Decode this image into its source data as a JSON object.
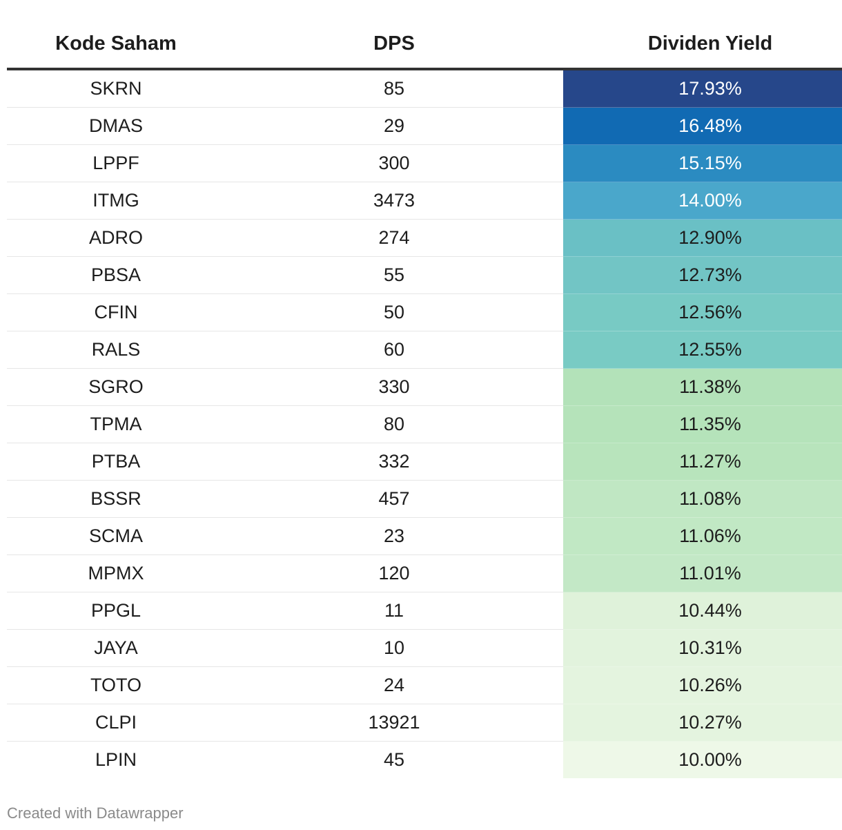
{
  "chart_data": {
    "type": "table",
    "columns": [
      "Kode Saham",
      "DPS",
      "Dividen Yield"
    ],
    "rows": [
      {
        "kode": "SKRN",
        "dps": "85",
        "yield": "17.93%",
        "bg": "#26478a",
        "fg": "#ffffff"
      },
      {
        "kode": "DMAS",
        "dps": "29",
        "yield": "16.48%",
        "bg": "#116ab3",
        "fg": "#ffffff"
      },
      {
        "kode": "LPPF",
        "dps": "300",
        "yield": "15.15%",
        "bg": "#2b8bc1",
        "fg": "#ffffff"
      },
      {
        "kode": "ITMG",
        "dps": "3473",
        "yield": "14.00%",
        "bg": "#4aa7cb",
        "fg": "#ffffff"
      },
      {
        "kode": "ADRO",
        "dps": "274",
        "yield": "12.90%",
        "bg": "#6ac0c5",
        "fg": "#1d1d1d"
      },
      {
        "kode": "PBSA",
        "dps": "55",
        "yield": "12.73%",
        "bg": "#72c5c5",
        "fg": "#1d1d1d"
      },
      {
        "kode": "CFIN",
        "dps": "50",
        "yield": "12.56%",
        "bg": "#78cac4",
        "fg": "#1d1d1d"
      },
      {
        "kode": "RALS",
        "dps": "60",
        "yield": "12.55%",
        "bg": "#79cbc4",
        "fg": "#1d1d1d"
      },
      {
        "kode": "SGRO",
        "dps": "330",
        "yield": "11.38%",
        "bg": "#b3e2b9",
        "fg": "#1d1d1d"
      },
      {
        "kode": "TPMA",
        "dps": "80",
        "yield": "11.35%",
        "bg": "#b5e3ba",
        "fg": "#1d1d1d"
      },
      {
        "kode": "PTBA",
        "dps": "332",
        "yield": "11.27%",
        "bg": "#b8e4bc",
        "fg": "#1d1d1d"
      },
      {
        "kode": "BSSR",
        "dps": "457",
        "yield": "11.08%",
        "bg": "#c0e7c3",
        "fg": "#1d1d1d"
      },
      {
        "kode": "SCMA",
        "dps": "23",
        "yield": "11.06%",
        "bg": "#c1e8c4",
        "fg": "#1d1d1d"
      },
      {
        "kode": "MPMX",
        "dps": "120",
        "yield": "11.01%",
        "bg": "#c3e8c6",
        "fg": "#1d1d1d"
      },
      {
        "kode": "PPGL",
        "dps": "11",
        "yield": "10.44%",
        "bg": "#dff2da",
        "fg": "#1d1d1d"
      },
      {
        "kode": "JAYA",
        "dps": "10",
        "yield": "10.31%",
        "bg": "#e2f3dd",
        "fg": "#1d1d1d"
      },
      {
        "kode": "TOTO",
        "dps": "24",
        "yield": "10.26%",
        "bg": "#e4f4df",
        "fg": "#1d1d1d"
      },
      {
        "kode": "CLPI",
        "dps": "13921",
        "yield": "10.27%",
        "bg": "#e4f4df",
        "fg": "#1d1d1d"
      },
      {
        "kode": "LPIN",
        "dps": "45",
        "yield": "10.00%",
        "bg": "#eef8e8",
        "fg": "#1d1d1d"
      }
    ]
  },
  "footer": {
    "credit": "Created with Datawrapper"
  }
}
